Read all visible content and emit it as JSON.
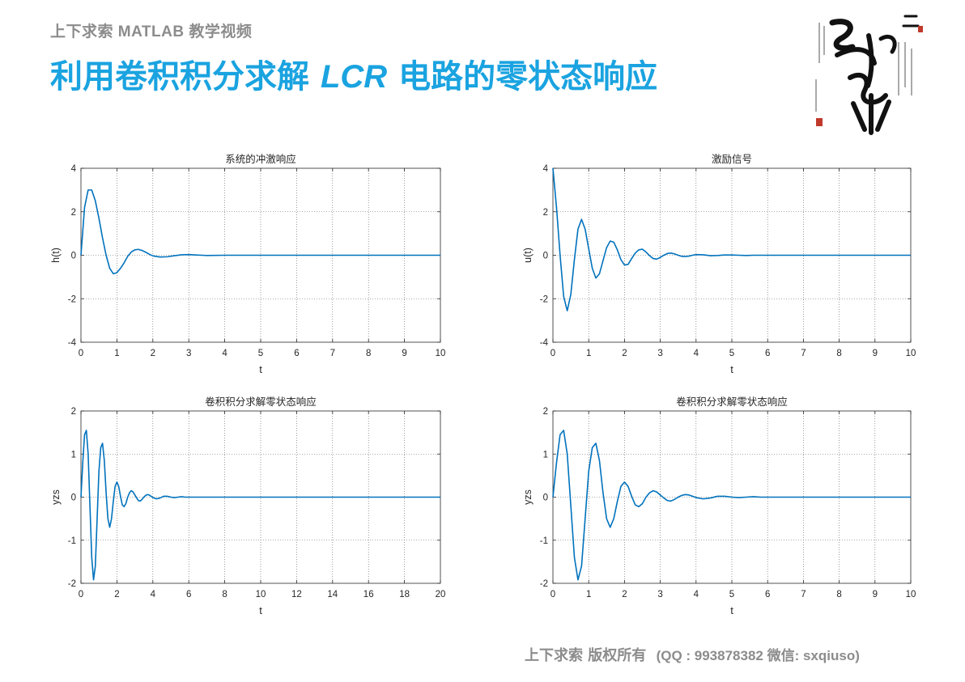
{
  "header": {
    "subtitle": "上下求索 MATLAB 教学视频",
    "title_main": "利用卷积积分求解",
    "title_lcr": "LCR",
    "title_tail": "电路的零状态响应"
  },
  "footer": {
    "copyright": "上下求索 版权所有",
    "contact": "(QQ : 993878382   微信: sxqiuso)"
  },
  "colors": {
    "accent": "#1aa3e0",
    "line": "#0072bd",
    "muted": "#8c8c8c"
  },
  "chart_data": [
    {
      "type": "line",
      "title": "系统的冲激响应",
      "xlabel": "t",
      "ylabel": "h(t)",
      "xlim": [
        0,
        10
      ],
      "ylim": [
        -4,
        4
      ],
      "xticks": [
        0,
        1,
        2,
        3,
        4,
        5,
        6,
        7,
        8,
        9,
        10
      ],
      "yticks": [
        -4,
        -2,
        0,
        2,
        4
      ],
      "grid": true,
      "series": [
        {
          "x": [
            0,
            0.1,
            0.2,
            0.3,
            0.4,
            0.5,
            0.6,
            0.7,
            0.8,
            0.9,
            1.0,
            1.1,
            1.2,
            1.3,
            1.4,
            1.5,
            1.6,
            1.7,
            1.8,
            1.9,
            2.0,
            2.2,
            2.4,
            2.6,
            2.8,
            3.0,
            3.2,
            3.5,
            4.0,
            5.0,
            10
          ],
          "y": [
            0,
            2.2,
            3.0,
            3.0,
            2.5,
            1.7,
            0.8,
            0.0,
            -0.6,
            -0.85,
            -0.8,
            -0.6,
            -0.35,
            -0.05,
            0.15,
            0.25,
            0.27,
            0.22,
            0.14,
            0.05,
            -0.03,
            -0.08,
            -0.07,
            -0.02,
            0.02,
            0.03,
            0.01,
            -0.01,
            0,
            0,
            0
          ]
        }
      ]
    },
    {
      "type": "line",
      "title": "激励信号",
      "xlabel": "t",
      "ylabel": "u(t)",
      "xlim": [
        0,
        10
      ],
      "ylim": [
        -4,
        4
      ],
      "xticks": [
        0,
        1,
        2,
        3,
        4,
        5,
        6,
        7,
        8,
        9,
        10
      ],
      "yticks": [
        -4,
        -2,
        0,
        2,
        4
      ],
      "grid": true,
      "series": [
        {
          "x": [
            0,
            0.1,
            0.2,
            0.3,
            0.4,
            0.5,
            0.6,
            0.7,
            0.8,
            0.9,
            1.0,
            1.1,
            1.2,
            1.3,
            1.4,
            1.5,
            1.6,
            1.7,
            1.8,
            1.9,
            2.0,
            2.1,
            2.2,
            2.3,
            2.4,
            2.5,
            2.6,
            2.7,
            2.8,
            2.9,
            3.0,
            3.1,
            3.2,
            3.3,
            3.4,
            3.5,
            3.6,
            3.7,
            3.8,
            3.9,
            4.0,
            4.2,
            4.4,
            4.6,
            4.8,
            5.0,
            5.2,
            5.4,
            5.6,
            5.8,
            6.0,
            10
          ],
          "y": [
            4.0,
            2.2,
            0.0,
            -1.9,
            -2.55,
            -1.8,
            -0.2,
            1.2,
            1.65,
            1.2,
            0.3,
            -0.6,
            -1.05,
            -0.85,
            -0.25,
            0.35,
            0.65,
            0.6,
            0.25,
            -0.2,
            -0.45,
            -0.42,
            -0.15,
            0.1,
            0.25,
            0.28,
            0.15,
            -0.02,
            -0.15,
            -0.18,
            -0.1,
            0.0,
            0.08,
            0.1,
            0.06,
            0.0,
            -0.05,
            -0.06,
            -0.04,
            0.0,
            0.03,
            0.02,
            -0.02,
            -0.01,
            0.01,
            0.01,
            0.0,
            -0.01,
            0.0,
            0.0,
            0,
            0
          ]
        }
      ]
    },
    {
      "type": "line",
      "title": "卷积积分求解零状态响应",
      "xlabel": "t",
      "ylabel": "yzs",
      "xlim": [
        0,
        20
      ],
      "ylim": [
        -2,
        2
      ],
      "xticks": [
        0,
        2,
        4,
        6,
        8,
        10,
        12,
        14,
        16,
        18,
        20
      ],
      "yticks": [
        -2,
        -1,
        0,
        1,
        2
      ],
      "grid": true,
      "series": [
        {
          "x": [
            0,
            0.1,
            0.2,
            0.3,
            0.4,
            0.5,
            0.6,
            0.7,
            0.8,
            0.9,
            1.0,
            1.1,
            1.2,
            1.3,
            1.4,
            1.5,
            1.6,
            1.7,
            1.8,
            1.9,
            2.0,
            2.1,
            2.2,
            2.3,
            2.4,
            2.5,
            2.6,
            2.7,
            2.8,
            2.9,
            3.0,
            3.1,
            3.2,
            3.3,
            3.4,
            3.5,
            3.6,
            3.7,
            3.8,
            3.9,
            4.0,
            4.2,
            4.4,
            4.6,
            4.8,
            5.0,
            5.2,
            5.4,
            5.6,
            5.8,
            6.0,
            7.0,
            8.0,
            20
          ],
          "y": [
            0,
            0.8,
            1.45,
            1.55,
            1.0,
            -0.2,
            -1.4,
            -1.92,
            -1.6,
            -0.5,
            0.6,
            1.15,
            1.25,
            0.85,
            0.1,
            -0.5,
            -0.7,
            -0.5,
            -0.1,
            0.25,
            0.35,
            0.25,
            0.02,
            -0.18,
            -0.22,
            -0.15,
            0.0,
            0.1,
            0.15,
            0.12,
            0.05,
            -0.02,
            -0.08,
            -0.09,
            -0.05,
            0.0,
            0.04,
            0.06,
            0.05,
            0.02,
            -0.01,
            -0.04,
            -0.02,
            0.02,
            0.02,
            0.0,
            -0.01,
            0.0,
            0.01,
            0.0,
            0,
            0,
            0,
            0
          ]
        }
      ]
    },
    {
      "type": "line",
      "title": "卷积积分求解零状态响应",
      "xlabel": "t",
      "ylabel": "yzs",
      "xlim": [
        0,
        10
      ],
      "ylim": [
        -2,
        2
      ],
      "xticks": [
        0,
        1,
        2,
        3,
        4,
        5,
        6,
        7,
        8,
        9,
        10
      ],
      "yticks": [
        -2,
        -1,
        0,
        1,
        2
      ],
      "grid": true,
      "series": [
        {
          "x": [
            0,
            0.1,
            0.2,
            0.3,
            0.4,
            0.5,
            0.6,
            0.7,
            0.8,
            0.9,
            1.0,
            1.1,
            1.2,
            1.3,
            1.4,
            1.5,
            1.6,
            1.7,
            1.8,
            1.9,
            2.0,
            2.1,
            2.2,
            2.3,
            2.4,
            2.5,
            2.6,
            2.7,
            2.8,
            2.9,
            3.0,
            3.1,
            3.2,
            3.3,
            3.4,
            3.5,
            3.6,
            3.7,
            3.8,
            3.9,
            4.0,
            4.2,
            4.4,
            4.6,
            4.8,
            5.0,
            5.2,
            5.4,
            5.6,
            5.8,
            6.0,
            7.0,
            8.0,
            10
          ],
          "y": [
            0,
            0.8,
            1.45,
            1.55,
            1.0,
            -0.2,
            -1.4,
            -1.92,
            -1.6,
            -0.5,
            0.6,
            1.15,
            1.25,
            0.85,
            0.1,
            -0.5,
            -0.7,
            -0.5,
            -0.1,
            0.25,
            0.35,
            0.25,
            0.02,
            -0.18,
            -0.22,
            -0.15,
            0.0,
            0.1,
            0.15,
            0.12,
            0.05,
            -0.02,
            -0.08,
            -0.09,
            -0.05,
            0.0,
            0.04,
            0.06,
            0.05,
            0.02,
            -0.01,
            -0.04,
            -0.02,
            0.02,
            0.02,
            0.0,
            -0.01,
            0.0,
            0.01,
            0.0,
            0,
            0,
            0,
            0
          ]
        }
      ]
    }
  ]
}
